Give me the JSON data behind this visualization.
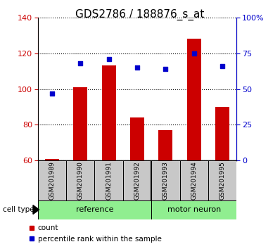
{
  "title": "GDS2786 / 188876_s_at",
  "categories": [
    "GSM201989",
    "GSM201990",
    "GSM201991",
    "GSM201992",
    "GSM201993",
    "GSM201994",
    "GSM201995"
  ],
  "count_values": [
    61,
    101,
    113,
    84,
    77,
    128,
    90
  ],
  "percentile_values": [
    47,
    68,
    71,
    65,
    64,
    75,
    66
  ],
  "bar_color": "#cc0000",
  "dot_color": "#0000cc",
  "left_ylim": [
    60,
    140
  ],
  "right_ylim": [
    0,
    100
  ],
  "left_yticks": [
    60,
    80,
    100,
    120,
    140
  ],
  "right_yticks": [
    0,
    25,
    50,
    75,
    100
  ],
  "right_yticklabels": [
    "0",
    "25",
    "50",
    "75",
    "100%"
  ],
  "group_labels": [
    "reference",
    "motor neuron"
  ],
  "cell_type_label": "cell type",
  "legend_count": "count",
  "legend_percentile": "percentile rank within the sample",
  "bar_width": 0.5,
  "title_fontsize": 11,
  "tick_fontsize": 8,
  "gray_box_color": "#c8c8c8",
  "green_color": "#90ee90"
}
